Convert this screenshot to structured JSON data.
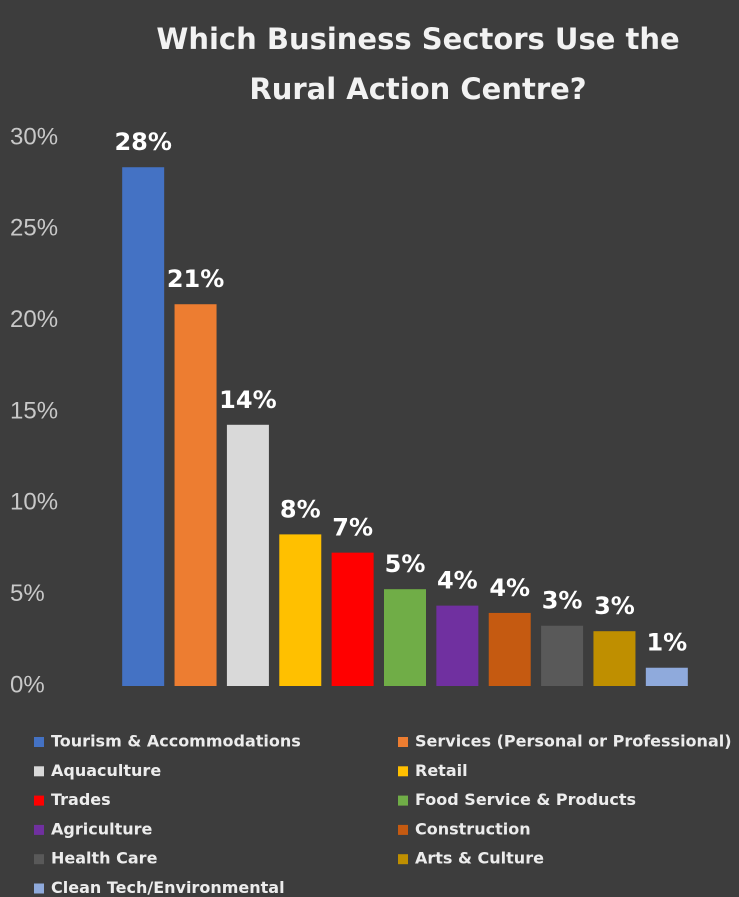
{
  "chart_data": {
    "type": "bar",
    "title": "Which Business Sectors Use the Rural Action Centre?",
    "categories": [
      "Tourism & Accommodations",
      "Services (Personal or Professional)",
      "Aquaculture",
      "Retail",
      "Trades",
      "Food Service & Products",
      "Agriculture",
      "Construction",
      "Health Care",
      "Arts & Culture",
      "Clean Tech/Environmental"
    ],
    "values": [
      28.4,
      20.9,
      14.3,
      8.3,
      7.3,
      5.3,
      4.4,
      4.0,
      3.3,
      3.0,
      1.0
    ],
    "value_labels": [
      "28%",
      "21%",
      "14%",
      "8%",
      "7%",
      "5%",
      "4%",
      "4%",
      "3%",
      "3%",
      "1%"
    ],
    "colors": [
      "#4472c4",
      "#ed7d31",
      "#d9d9d9",
      "#ffc000",
      "#ff0000",
      "#70ad47",
      "#7030a0",
      "#c55a11",
      "#595959",
      "#bf8f00",
      "#8faadc"
    ],
    "ylim": [
      0,
      30
    ],
    "yticks": [
      {
        "value": 0,
        "label": "0%"
      },
      {
        "value": 5,
        "label": "5%"
      },
      {
        "value": 10,
        "label": "10%"
      },
      {
        "value": 15,
        "label": "15%"
      },
      {
        "value": 20,
        "label": "20%"
      },
      {
        "value": 25,
        "label": "25%"
      },
      {
        "value": 30,
        "label": "30%"
      }
    ],
    "grid": false,
    "legend": "bottom"
  }
}
